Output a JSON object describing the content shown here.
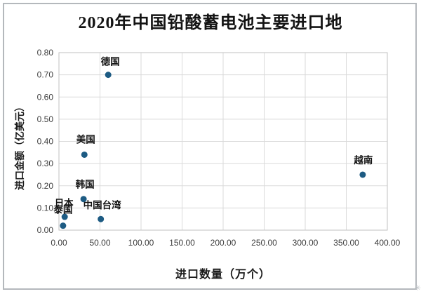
{
  "title": "2020年中国铅酸蓄电池主要进口地",
  "decorations": {
    "corner_mark_icon": "✳"
  },
  "colors": {
    "point": "#1d5b83",
    "grid": "#dadada",
    "plot_border": "#c2c2c2",
    "tick_text": "#3d3d3d",
    "label_text": "#141414",
    "frame": "#b4b8bc"
  },
  "chart_data": {
    "type": "scatter",
    "title": "2020年中国铅酸蓄电池主要进口地",
    "xlabel": "进口数量（万个）",
    "ylabel": "进口金额（亿美元）",
    "xlim": [
      0,
      400
    ],
    "ylim": [
      0,
      0.8
    ],
    "grid": true,
    "legend": "none",
    "x_tick_values": [
      0,
      50,
      100,
      150,
      200,
      250,
      300,
      350,
      400
    ],
    "x_tick_labels": [
      "0.00",
      "50.00",
      "100.00",
      "150.00",
      "200.00",
      "250.00",
      "300.00",
      "350.00",
      "400.00"
    ],
    "y_tick_values": [
      0,
      0.1,
      0.2,
      0.3,
      0.4,
      0.5,
      0.6,
      0.7,
      0.8
    ],
    "y_tick_labels": [
      "0.00",
      "0.10",
      "0.20",
      "0.30",
      "0.40",
      "0.50",
      "0.60",
      "0.70",
      "0.80"
    ],
    "points": [
      {
        "label": "德国",
        "x": 60,
        "y": 0.7,
        "label_offset": [
          3,
          -14
        ]
      },
      {
        "label": "美国",
        "x": 31,
        "y": 0.34,
        "label_offset": [
          2,
          -17
        ]
      },
      {
        "label": "韩国",
        "x": 30,
        "y": 0.14,
        "label_offset": [
          2,
          -16
        ]
      },
      {
        "label": "日本",
        "x": 7,
        "y": 0.06,
        "label_offset": [
          -1,
          -15
        ]
      },
      {
        "label": "泰国",
        "x": 5,
        "y": 0.02,
        "label_offset": [
          0,
          -18
        ]
      },
      {
        "label": "中国台湾",
        "x": 51,
        "y": 0.05,
        "label_offset": [
          2,
          -15
        ]
      },
      {
        "label": "越南",
        "x": 370,
        "y": 0.25,
        "label_offset": [
          1,
          -16
        ]
      }
    ]
  }
}
